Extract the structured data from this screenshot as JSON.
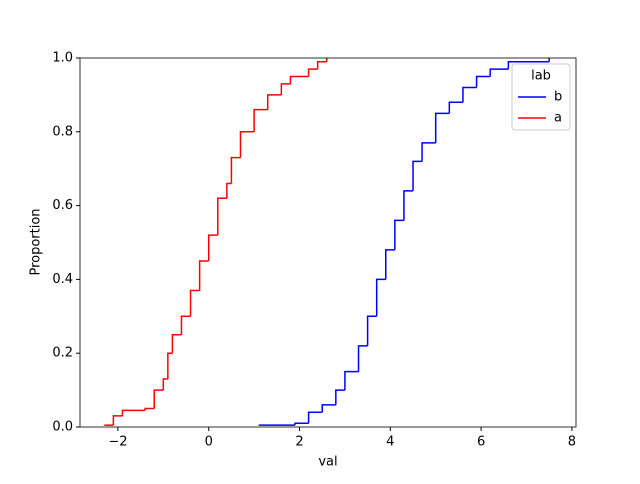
{
  "chart_data": {
    "type": "ecdf",
    "xlabel": "val",
    "ylabel": "Proportion",
    "legend_title": "lab",
    "legend": "upper right",
    "xlim": [
      -2.835,
      8.09
    ],
    "ylim": [
      0,
      1
    ],
    "xticks": [
      {
        "value": -2,
        "label": "−2"
      },
      0,
      2,
      4,
      6,
      8
    ],
    "yticks": [
      {
        "value": 0,
        "label": "0.0"
      },
      0.2,
      0.4,
      0.6,
      0.8,
      {
        "value": 1,
        "label": "1.0"
      }
    ],
    "series": [
      {
        "name": "b",
        "color": "#0000ff",
        "x": [
          1.1,
          1.9,
          2.2,
          2.5,
          2.8,
          3.0,
          3.3,
          3.5,
          3.7,
          3.9,
          4.1,
          4.3,
          4.5,
          4.7,
          5.0,
          5.3,
          5.6,
          5.9,
          6.2,
          6.6,
          7.5
        ],
        "values": [
          0.005,
          0.01,
          0.04,
          0.06,
          0.1,
          0.15,
          0.22,
          0.3,
          0.4,
          0.48,
          0.56,
          0.64,
          0.72,
          0.77,
          0.85,
          0.88,
          0.92,
          0.95,
          0.97,
          0.99,
          1.0
        ]
      },
      {
        "name": "a",
        "color": "#ff0000",
        "x": [
          -2.3,
          -2.1,
          -1.9,
          -1.4,
          -1.2,
          -1.0,
          -0.9,
          -0.8,
          -0.6,
          -0.4,
          -0.2,
          0,
          0.2,
          0.4,
          0.5,
          0.7,
          1.0,
          1.3,
          1.6,
          1.8,
          2.2,
          2.4,
          2.6
        ],
        "values": [
          0.005,
          0.03,
          0.045,
          0.05,
          0.1,
          0.13,
          0.2,
          0.25,
          0.3,
          0.37,
          0.45,
          0.52,
          0.62,
          0.66,
          0.73,
          0.8,
          0.86,
          0.9,
          0.93,
          0.95,
          0.97,
          0.99,
          1.0
        ]
      }
    ]
  }
}
